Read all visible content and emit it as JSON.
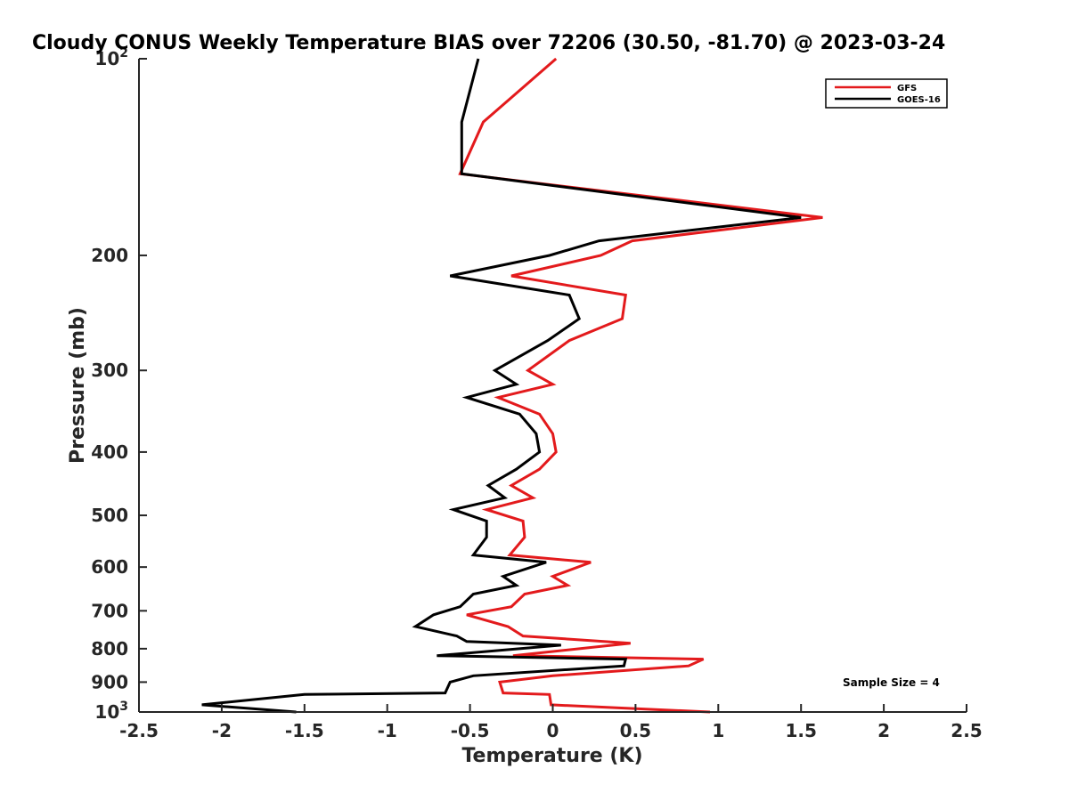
{
  "chart_data": {
    "type": "line",
    "title": "Cloudy CONUS Weekly Temperature BIAS over 72206 (30.50, -81.70) @ 2023-03-24",
    "xlabel": "Temperature (K)",
    "ylabel": "Pressure (mb)",
    "xlim": [
      -2.5,
      2.5
    ],
    "ylim": [
      1000,
      100
    ],
    "y_scale": "log",
    "x_ticks": [
      "-2.5",
      "-2",
      "-1.5",
      "-1",
      "-0.5",
      "0",
      "0.5",
      "1",
      "1.5",
      "2",
      "2.5"
    ],
    "y_ticks": [
      {
        "value": 100,
        "base": "10",
        "exp": "2"
      },
      {
        "value": 200,
        "label": "200"
      },
      {
        "value": 300,
        "label": "300"
      },
      {
        "value": 400,
        "label": "400"
      },
      {
        "value": 500,
        "label": "500"
      },
      {
        "value": 600,
        "label": "600"
      },
      {
        "value": 700,
        "label": "700"
      },
      {
        "value": 800,
        "label": "800"
      },
      {
        "value": 900,
        "label": "900"
      },
      {
        "value": 1000,
        "base": "10",
        "exp": "3"
      }
    ],
    "legend_position": "top-right",
    "annotation": "Sample Size = 4",
    "series": [
      {
        "name": "GFS",
        "color": "#e31a1c",
        "points": [
          [
            0.02,
            100
          ],
          [
            -0.42,
            125
          ],
          [
            -0.56,
            150
          ],
          [
            1.63,
            175
          ],
          [
            0.48,
            190
          ],
          [
            0.29,
            200
          ],
          [
            -0.25,
            215
          ],
          [
            0.44,
            230
          ],
          [
            0.42,
            250
          ],
          [
            0.1,
            270
          ],
          [
            -0.15,
            300
          ],
          [
            0.0,
            315
          ],
          [
            -0.33,
            330
          ],
          [
            -0.08,
            350
          ],
          [
            0.0,
            375
          ],
          [
            0.02,
            400
          ],
          [
            -0.08,
            425
          ],
          [
            -0.25,
            450
          ],
          [
            -0.12,
            470
          ],
          [
            -0.4,
            490
          ],
          [
            -0.18,
            510
          ],
          [
            -0.17,
            540
          ],
          [
            -0.26,
            575
          ],
          [
            0.23,
            590
          ],
          [
            0.0,
            620
          ],
          [
            0.09,
            640
          ],
          [
            -0.17,
            660
          ],
          [
            -0.25,
            690
          ],
          [
            -0.52,
            710
          ],
          [
            -0.27,
            740
          ],
          [
            -0.18,
            765
          ],
          [
            0.47,
            785
          ],
          [
            -0.24,
            820
          ],
          [
            0.91,
            830
          ],
          [
            0.82,
            850
          ],
          [
            0.0,
            880
          ],
          [
            -0.32,
            900
          ],
          [
            -0.3,
            935
          ],
          [
            -0.02,
            940
          ],
          [
            -0.01,
            975
          ],
          [
            0.95,
            1000
          ]
        ]
      },
      {
        "name": "GOES-16",
        "color": "#000000",
        "points": [
          [
            -0.45,
            100
          ],
          [
            -0.55,
            125
          ],
          [
            -0.55,
            150
          ],
          [
            1.5,
            175
          ],
          [
            0.28,
            190
          ],
          [
            -0.02,
            200
          ],
          [
            -0.62,
            215
          ],
          [
            0.1,
            230
          ],
          [
            0.16,
            250
          ],
          [
            -0.03,
            270
          ],
          [
            -0.35,
            300
          ],
          [
            -0.22,
            315
          ],
          [
            -0.52,
            330
          ],
          [
            -0.2,
            350
          ],
          [
            -0.1,
            375
          ],
          [
            -0.08,
            400
          ],
          [
            -0.22,
            425
          ],
          [
            -0.39,
            450
          ],
          [
            -0.29,
            470
          ],
          [
            -0.6,
            490
          ],
          [
            -0.4,
            510
          ],
          [
            -0.4,
            540
          ],
          [
            -0.48,
            575
          ],
          [
            -0.04,
            590
          ],
          [
            -0.3,
            620
          ],
          [
            -0.22,
            640
          ],
          [
            -0.48,
            660
          ],
          [
            -0.56,
            690
          ],
          [
            -0.72,
            710
          ],
          [
            -0.83,
            740
          ],
          [
            -0.58,
            765
          ],
          [
            -0.52,
            780
          ],
          [
            0.05,
            790
          ],
          [
            -0.7,
            820
          ],
          [
            0.44,
            830
          ],
          [
            0.43,
            850
          ],
          [
            -0.48,
            880
          ],
          [
            -0.62,
            900
          ],
          [
            -0.65,
            935
          ],
          [
            -1.5,
            940
          ],
          [
            -2.12,
            975
          ],
          [
            -1.55,
            1000
          ]
        ]
      }
    ]
  }
}
